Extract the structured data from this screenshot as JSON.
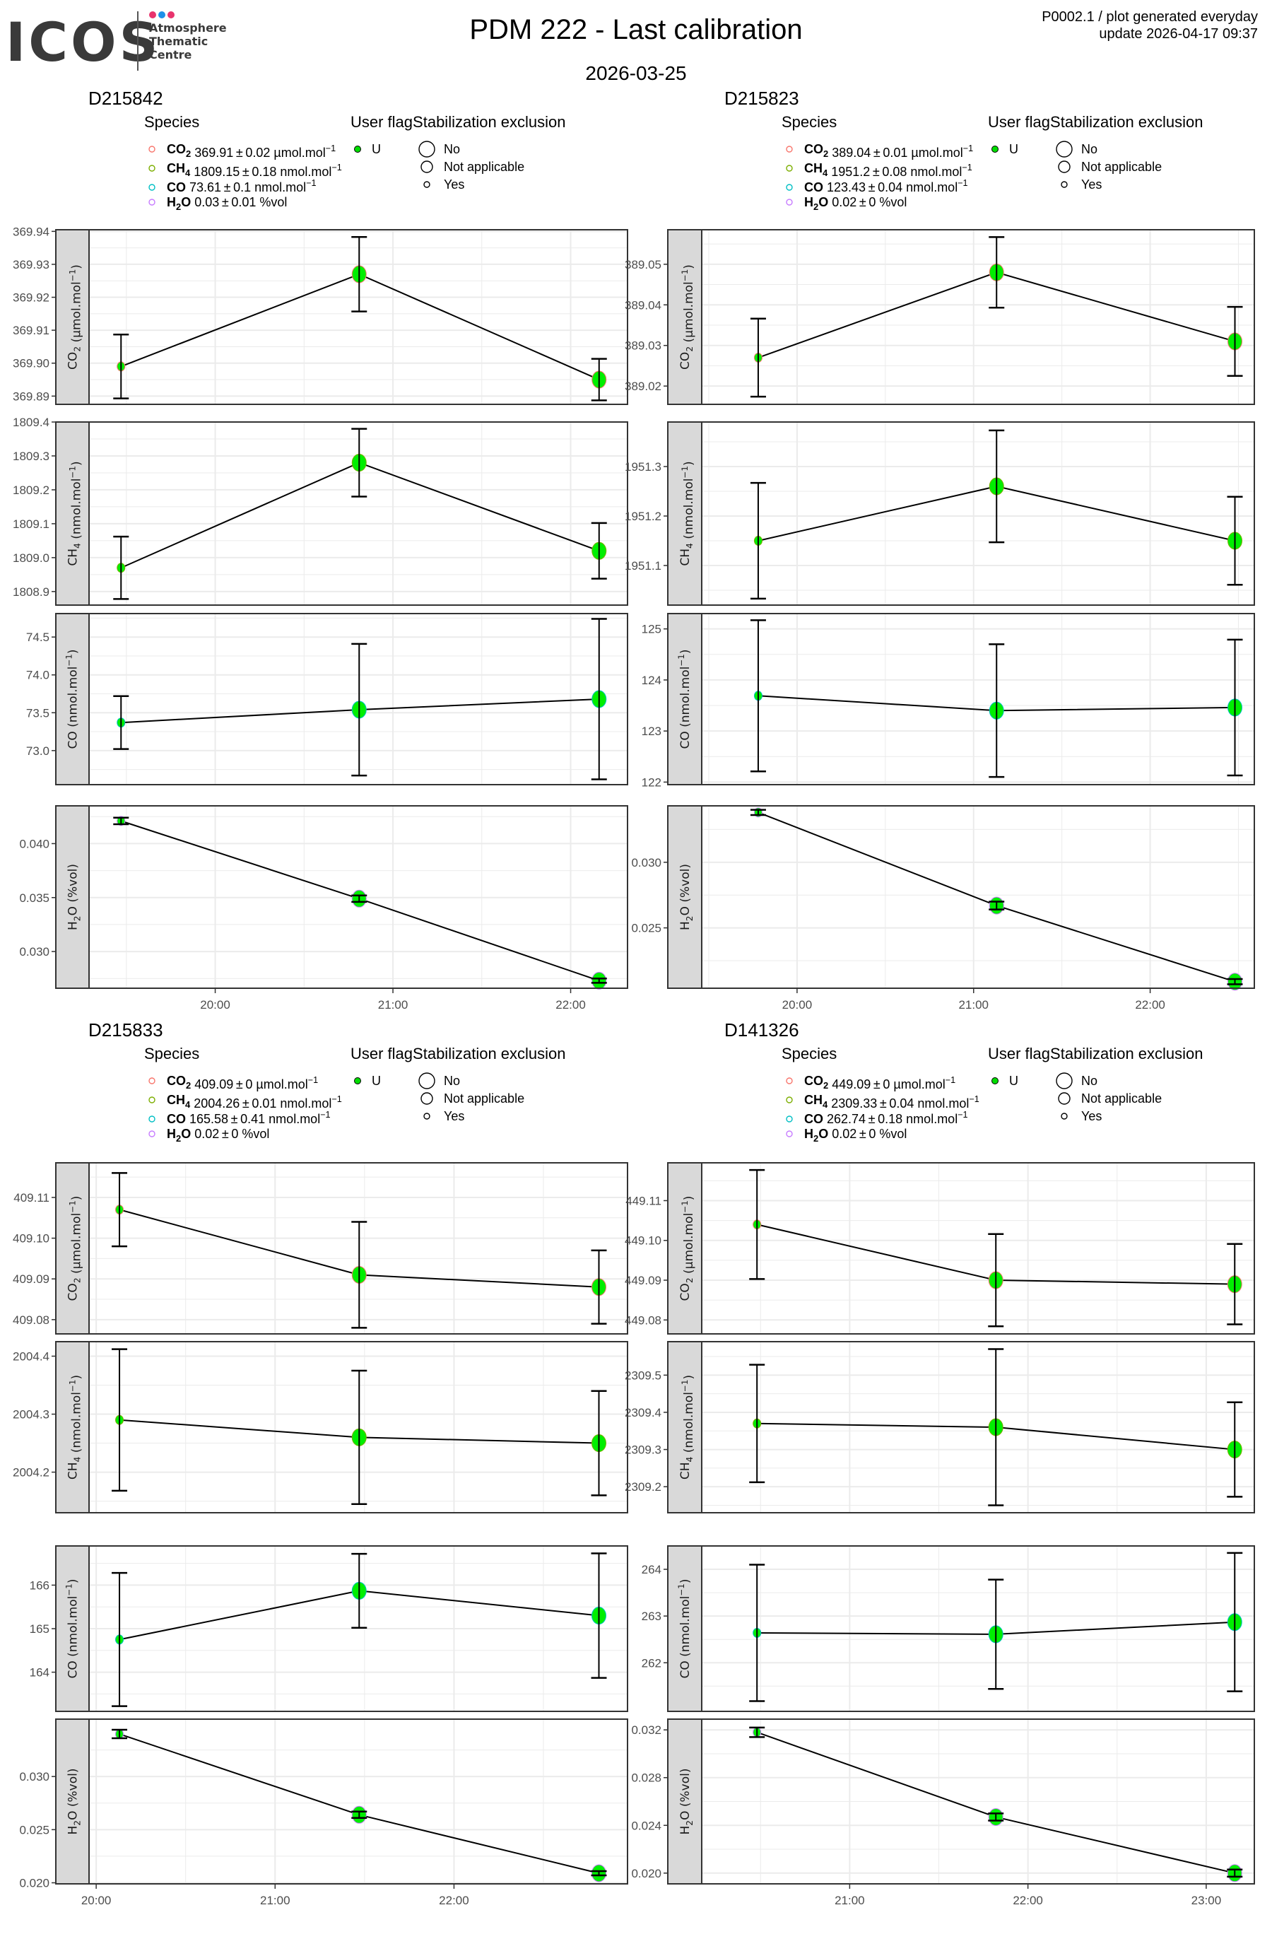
{
  "header": {
    "logo": {
      "name": "ICOS",
      "subtitle_lines": [
        "Atmosphere",
        "Thematic",
        "Centre"
      ],
      "dot_colors": [
        "#e8336d",
        "#1e90e8",
        "#e8336d"
      ]
    },
    "title": "PDM 222 - Last calibration",
    "subtitle": "2026-03-25",
    "meta_line1": "P0002.1 / plot generated everyday",
    "meta_line2": "update  2026-04-17 09:37"
  },
  "legend_common": {
    "species_title": "Species",
    "user_flag_title": "User flag",
    "stabilization_title": "Stabilization exclusion",
    "user_flag_items": [
      {
        "label": "U",
        "color": "#00dd00"
      }
    ],
    "stabilization_items": [
      {
        "label": "No",
        "size": "large"
      },
      {
        "label": "Not applicable",
        "size": "medium"
      },
      {
        "label": "Yes",
        "size": "small"
      }
    ]
  },
  "colors": {
    "CO2": "#f8766d",
    "CH4": "#7cae00",
    "CO": "#00bfc4",
    "H2O": "#c77cff",
    "point_fill": "#00ee00",
    "strip_bg": "#d9d9d9",
    "grid": "#ebebeb"
  },
  "chart_data": [
    {
      "type": "scatter",
      "title": "D215842",
      "legend": [
        {
          "species": "CO2",
          "value": "369.91",
          "sd": "0.02",
          "unit": "µmol.mol",
          "unit_exp": "-1"
        },
        {
          "species": "CH4",
          "value": "1809.15",
          "sd": "0.18",
          "unit": "nmol.mol",
          "unit_exp": "-1"
        },
        {
          "species": "CO",
          "value": "73.61",
          "sd": "0.1",
          "unit": "nmol.mol",
          "unit_exp": "-1"
        },
        {
          "species": "H2O",
          "value": "0.03",
          "sd": "0.01",
          "unit": "%vol",
          "unit_exp": ""
        }
      ],
      "x": [
        "19:28",
        "20:49",
        "22:10"
      ],
      "x_hours": [
        19.47,
        20.81,
        22.16
      ],
      "xlim_hours": [
        19.29,
        22.32
      ],
      "xticks": [
        {
          "h": 20,
          "label": "20:00"
        },
        {
          "h": 21,
          "label": "21:00"
        },
        {
          "h": 22,
          "label": "22:00"
        }
      ],
      "stabilization": [
        "Yes",
        "Not applicable",
        "No"
      ],
      "user_flag": "U",
      "panels": [
        {
          "species": "CO2",
          "ylabel": "CO2 (µmol.mol-1)",
          "ylim": [
            369.8875,
            369.9405
          ],
          "yticks": [
            369.89,
            369.9,
            369.91,
            369.92,
            369.93,
            369.94
          ],
          "ytick_labels": [
            "369.89",
            "369.90",
            "369.91",
            "369.92",
            "369.93",
            "369.94"
          ],
          "values": [
            369.899,
            369.927,
            369.895
          ],
          "err": [
            0.0097,
            0.0113,
            0.0063
          ]
        },
        {
          "species": "CH4",
          "ylabel": "CH4 (nmol.mol-1)",
          "ylim": [
            1808.86,
            1809.4
          ],
          "yticks": [
            1808.9,
            1809.0,
            1809.1,
            1809.2,
            1809.3,
            1809.4
          ],
          "ytick_labels": [
            "1808.9",
            "1809.0",
            "1809.1",
            "1809.2",
            "1809.3",
            "1809.4"
          ],
          "values": [
            1808.97,
            1809.28,
            1809.02
          ],
          "err": [
            0.092,
            0.1,
            0.082
          ]
        },
        {
          "species": "CO",
          "ylabel": "CO (nmol.mol-1)",
          "ylim": [
            72.55,
            74.81
          ],
          "yticks": [
            73.0,
            73.5,
            74.0,
            74.5
          ],
          "ytick_labels": [
            "73.0",
            "73.5",
            "74.0",
            "74.5"
          ],
          "values": [
            73.37,
            73.54,
            73.68
          ],
          "err": [
            0.35,
            0.87,
            1.06
          ]
        },
        {
          "species": "H2O",
          "ylabel": "H2O (%vol)",
          "ylim": [
            0.0266,
            0.0435
          ],
          "yticks": [
            0.03,
            0.035,
            0.04
          ],
          "ytick_labels": [
            "0.030",
            "0.035",
            "0.040"
          ],
          "values": [
            0.0421,
            0.0349,
            0.0273
          ],
          "err": [
            0.0003,
            0.0003,
            0.0002
          ]
        }
      ]
    },
    {
      "type": "scatter",
      "title": "D215823",
      "legend": [
        {
          "species": "CO2",
          "value": "389.04",
          "sd": "0.01",
          "unit": "µmol.mol",
          "unit_exp": "-1"
        },
        {
          "species": "CH4",
          "value": "1951.2",
          "sd": "0.08",
          "unit": "nmol.mol",
          "unit_exp": "-1"
        },
        {
          "species": "CO",
          "value": "123.43",
          "sd": "0.04",
          "unit": "nmol.mol",
          "unit_exp": "-1"
        },
        {
          "species": "H2O",
          "value": "0.02",
          "sd": "0",
          "unit": "%vol",
          "unit_exp": ""
        }
      ],
      "x": [
        "19:47",
        "21:08",
        "22:29"
      ],
      "x_hours": [
        19.78,
        21.13,
        22.48
      ],
      "xlim_hours": [
        19.46,
        22.59
      ],
      "xticks": [
        {
          "h": 20,
          "label": "20:00"
        },
        {
          "h": 21,
          "label": "21:00"
        },
        {
          "h": 22,
          "label": "22:00"
        }
      ],
      "stabilization": [
        "Yes",
        "Not applicable",
        "No"
      ],
      "user_flag": "U",
      "panels": [
        {
          "species": "CO2",
          "ylabel": "CO2 (µmol.mol-1)",
          "ylim": [
            389.0155,
            389.0585
          ],
          "yticks": [
            389.02,
            389.03,
            389.04,
            389.05
          ],
          "ytick_labels": [
            "389.02",
            "389.03",
            "389.04",
            "389.05"
          ],
          "values": [
            389.027,
            389.048,
            389.031
          ],
          "err": [
            0.0096,
            0.0087,
            0.0085
          ]
        },
        {
          "species": "CH4",
          "ylabel": "CH4 (nmol.mol-1)",
          "ylim": [
            1951.02,
            1951.39
          ],
          "yticks": [
            1951.1,
            1951.2,
            1951.3
          ],
          "ytick_labels": [
            "1951.1",
            "1951.2",
            "1951.3"
          ],
          "values": [
            1951.15,
            1951.26,
            1951.15
          ],
          "err": [
            0.117,
            0.113,
            0.089
          ]
        },
        {
          "species": "CO",
          "ylabel": "CO (nmol.mol-1)",
          "ylim": [
            121.95,
            125.3
          ],
          "yticks": [
            122,
            123,
            124,
            125
          ],
          "ytick_labels": [
            "122",
            "123",
            "124",
            "125"
          ],
          "values": [
            123.69,
            123.4,
            123.46
          ],
          "err": [
            1.48,
            1.3,
            1.33
          ]
        },
        {
          "species": "H2O",
          "ylabel": "H2O (%vol)",
          "ylim": [
            0.0204,
            0.0343
          ],
          "yticks": [
            0.025,
            0.03
          ],
          "ytick_labels": [
            "0.025",
            "0.030"
          ],
          "values": [
            0.0338,
            0.0267,
            0.0209
          ],
          "err": [
            0.0002,
            0.0003,
            0.0002
          ]
        }
      ]
    },
    {
      "type": "scatter",
      "title": "D215833",
      "legend": [
        {
          "species": "CO2",
          "value": "409.09",
          "sd": "0",
          "unit": "µmol.mol",
          "unit_exp": "-1"
        },
        {
          "species": "CH4",
          "value": "2004.26",
          "sd": "0.01",
          "unit": "nmol.mol",
          "unit_exp": "-1"
        },
        {
          "species": "CO",
          "value": "165.58",
          "sd": "0.41",
          "unit": "nmol.mol",
          "unit_exp": "-1"
        },
        {
          "species": "H2O",
          "value": "0.02",
          "sd": "0",
          "unit": "%vol",
          "unit_exp": ""
        }
      ],
      "x": [
        "20:08",
        "21:28",
        "22:49"
      ],
      "x_hours": [
        20.13,
        21.47,
        22.81
      ],
      "xlim_hours": [
        19.96,
        22.97
      ],
      "xticks": [
        {
          "h": 20,
          "label": "20:00"
        },
        {
          "h": 21,
          "label": "21:00"
        },
        {
          "h": 22,
          "label": "22:00"
        }
      ],
      "stabilization": [
        "Yes",
        "Not applicable",
        "No"
      ],
      "user_flag": "U",
      "panels": [
        {
          "species": "CO2",
          "ylabel": "CO2 (µmol.mol-1)",
          "ylim": [
            409.0765,
            409.1185
          ],
          "yticks": [
            409.08,
            409.09,
            409.1,
            409.11
          ],
          "ytick_labels": [
            "409.08",
            "409.09",
            "409.10",
            "409.11"
          ],
          "values": [
            409.107,
            409.091,
            409.088
          ],
          "err": [
            0.009,
            0.013,
            0.009
          ]
        },
        {
          "species": "CH4",
          "ylabel": "CH4 (nmol.mol-1)",
          "ylim": [
            2004.13,
            2004.425
          ],
          "yticks": [
            2004.2,
            2004.3,
            2004.4
          ],
          "ytick_labels": [
            "2004.2",
            "2004.3",
            "2004.4"
          ],
          "values": [
            2004.29,
            2004.26,
            2004.25
          ],
          "err": [
            0.122,
            0.115,
            0.09
          ]
        },
        {
          "species": "CO",
          "ylabel": "CO (nmol.mol-1)",
          "ylim": [
            163.1,
            166.9
          ],
          "yticks": [
            164,
            165,
            166
          ],
          "ytick_labels": [
            "164",
            "165",
            "166"
          ],
          "values": [
            164.75,
            165.87,
            165.3
          ],
          "err": [
            1.53,
            0.85,
            1.43
          ]
        },
        {
          "species": "H2O",
          "ylabel": "H2O (%vol)",
          "ylim": [
            0.0199,
            0.0354
          ],
          "yticks": [
            0.02,
            0.025,
            0.03
          ],
          "ytick_labels": [
            "0.020",
            "0.025",
            "0.030"
          ],
          "values": [
            0.034,
            0.0264,
            0.0209
          ],
          "err": [
            0.0004,
            0.0003,
            0.0002
          ]
        }
      ]
    },
    {
      "type": "scatter",
      "title": "D141326",
      "legend": [
        {
          "species": "CO2",
          "value": "449.09",
          "sd": "0",
          "unit": "µmol.mol",
          "unit_exp": "-1"
        },
        {
          "species": "CH4",
          "value": "2309.33",
          "sd": "0.04",
          "unit": "nmol.mol",
          "unit_exp": "-1"
        },
        {
          "species": "CO",
          "value": "262.74",
          "sd": "0.18",
          "unit": "nmol.mol",
          "unit_exp": "-1"
        },
        {
          "species": "H2O",
          "value": "0.02",
          "sd": "0",
          "unit": "%vol",
          "unit_exp": ""
        }
      ],
      "x": [
        "20:29",
        "21:49",
        "23:10"
      ],
      "x_hours": [
        20.48,
        21.82,
        23.16
      ],
      "xlim_hours": [
        20.17,
        23.27
      ],
      "xticks": [
        {
          "h": 21,
          "label": "21:00"
        },
        {
          "h": 22,
          "label": "22:00"
        },
        {
          "h": 23,
          "label": "23:00"
        }
      ],
      "stabilization": [
        "Yes",
        "Not applicable",
        "No"
      ],
      "user_flag": "U",
      "panels": [
        {
          "species": "CO2",
          "ylabel": "CO2 (µmol.mol-1)",
          "ylim": [
            449.0765,
            449.1195
          ],
          "yticks": [
            449.08,
            449.09,
            449.1,
            449.11
          ],
          "ytick_labels": [
            "449.08",
            "449.09",
            "449.10",
            "449.11"
          ],
          "values": [
            449.104,
            449.09,
            449.089
          ],
          "err": [
            0.0137,
            0.0116,
            0.0101
          ]
        },
        {
          "species": "CH4",
          "ylabel": "CH4 (nmol.mol-1)",
          "ylim": [
            2309.13,
            2309.59
          ],
          "yticks": [
            2309.2,
            2309.3,
            2309.4,
            2309.5
          ],
          "ytick_labels": [
            "2309.2",
            "2309.3",
            "2309.4",
            "2309.5"
          ],
          "values": [
            2309.37,
            2309.36,
            2309.3
          ],
          "err": [
            0.158,
            0.21,
            0.127
          ]
        },
        {
          "species": "CO",
          "ylabel": "CO (nmol.mol-1)",
          "ylim": [
            260.96,
            264.5
          ],
          "yticks": [
            262,
            263,
            264
          ],
          "ytick_labels": [
            "262",
            "263",
            "264"
          ],
          "values": [
            262.64,
            262.61,
            262.87
          ],
          "err": [
            1.46,
            1.17,
            1.48
          ]
        },
        {
          "species": "H2O",
          "ylabel": "H2O (%vol)",
          "ylim": [
            0.0191,
            0.0329
          ],
          "yticks": [
            0.02,
            0.024,
            0.028,
            0.032
          ],
          "ytick_labels": [
            "0.020",
            "0.024",
            "0.028",
            "0.032"
          ],
          "values": [
            0.0318,
            0.0247,
            0.02
          ],
          "err": [
            0.0004,
            0.0003,
            0.0003
          ]
        }
      ]
    }
  ]
}
